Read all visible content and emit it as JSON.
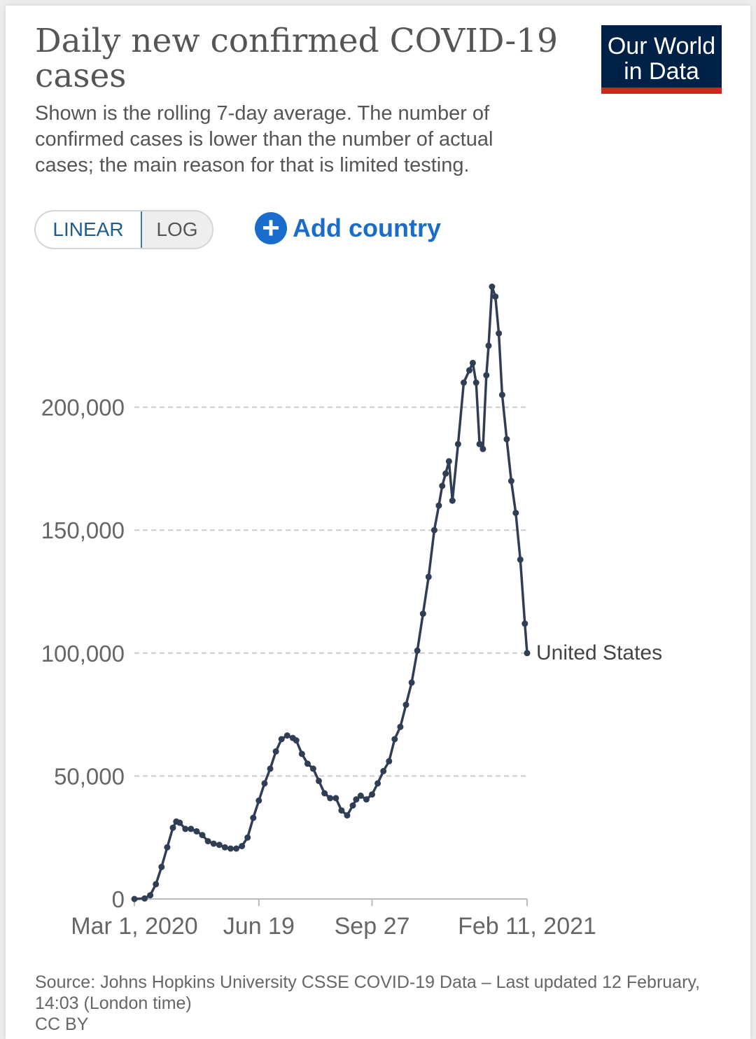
{
  "header": {
    "title": "Daily new confirmed COVID-19 cases",
    "subtitle": "Shown is the rolling 7-day average. The number of confirmed cases is lower than the number of actual cases; the main reason for that is limited testing.",
    "logo_line1": "Our World",
    "logo_line2": "in Data"
  },
  "controls": {
    "linear_label": "LINEAR",
    "log_label": "LOG",
    "add_country_label": "Add country"
  },
  "footer": {
    "source": "Source: Johns Hopkins University CSSE COVID-19 Data – Last updated 12 February, 14:03 (London time)",
    "license": "CC BY"
  },
  "colors": {
    "line": "#2f3e54",
    "logo_bg": "#002147",
    "logo_accent": "#ce261e",
    "link": "#1a6ccc",
    "grid": "#cccccc"
  },
  "chart_data": {
    "type": "line",
    "xlabel": "",
    "ylabel": "",
    "x_tick_labels": [
      "Mar 1, 2020",
      "Jun 19",
      "Sep 27",
      "Feb 11, 2021"
    ],
    "x_ticks": [
      "2020-03-01",
      "2020-06-19",
      "2020-09-27",
      "2021-02-11"
    ],
    "y_ticks": [
      0,
      50000,
      100000,
      150000,
      200000
    ],
    "y_tick_labels": [
      "0",
      "50,000",
      "100,000",
      "150,000",
      "200,000"
    ],
    "ylim": [
      0,
      250000
    ],
    "grid": "horizontal dashed",
    "series": [
      {
        "name": "United States",
        "x": [
          "2020-03-01",
          "2020-03-10",
          "2020-03-15",
          "2020-03-20",
          "2020-03-25",
          "2020-03-30",
          "2020-04-04",
          "2020-04-07",
          "2020-04-10",
          "2020-04-15",
          "2020-04-20",
          "2020-04-25",
          "2020-04-30",
          "2020-05-05",
          "2020-05-10",
          "2020-05-15",
          "2020-05-20",
          "2020-05-25",
          "2020-05-30",
          "2020-06-04",
          "2020-06-09",
          "2020-06-14",
          "2020-06-19",
          "2020-06-24",
          "2020-06-29",
          "2020-07-04",
          "2020-07-09",
          "2020-07-14",
          "2020-07-19",
          "2020-07-22",
          "2020-07-27",
          "2020-08-01",
          "2020-08-06",
          "2020-08-11",
          "2020-08-16",
          "2020-08-21",
          "2020-08-26",
          "2020-08-31",
          "2020-09-05",
          "2020-09-10",
          "2020-09-13",
          "2020-09-17",
          "2020-09-22",
          "2020-09-27",
          "2020-10-02",
          "2020-10-07",
          "2020-10-12",
          "2020-10-17",
          "2020-10-22",
          "2020-10-27",
          "2020-11-01",
          "2020-11-06",
          "2020-11-11",
          "2020-11-16",
          "2020-11-21",
          "2020-11-25",
          "2020-11-28",
          "2020-12-01",
          "2020-12-04",
          "2020-12-07",
          "2020-12-12",
          "2020-12-17",
          "2020-12-22",
          "2020-12-25",
          "2020-12-28",
          "2020-12-31",
          "2021-01-03",
          "2021-01-06",
          "2021-01-08",
          "2021-01-11",
          "2021-01-14",
          "2021-01-17",
          "2021-01-20",
          "2021-01-24",
          "2021-01-28",
          "2021-02-01",
          "2021-02-05",
          "2021-02-09",
          "2021-02-11"
        ],
        "values": [
          0,
          200,
          1500,
          6000,
          13000,
          21000,
          29000,
          31500,
          31000,
          28500,
          28500,
          27500,
          26000,
          23500,
          22500,
          22000,
          21000,
          20500,
          20500,
          21500,
          25000,
          33000,
          40000,
          47000,
          53000,
          60000,
          65000,
          66500,
          65500,
          64500,
          59000,
          55000,
          53000,
          48000,
          43000,
          41000,
          41000,
          36000,
          34000,
          38000,
          40500,
          42000,
          40500,
          42500,
          47000,
          52000,
          56000,
          65000,
          70000,
          79000,
          88000,
          101000,
          116000,
          131000,
          150000,
          160000,
          168000,
          173000,
          178000,
          162000,
          185000,
          210000,
          215000,
          218000,
          210000,
          185000,
          183000,
          213000,
          225000,
          249000,
          245000,
          230000,
          205000,
          187000,
          170000,
          157000,
          138000,
          112000,
          100000
        ]
      }
    ]
  }
}
